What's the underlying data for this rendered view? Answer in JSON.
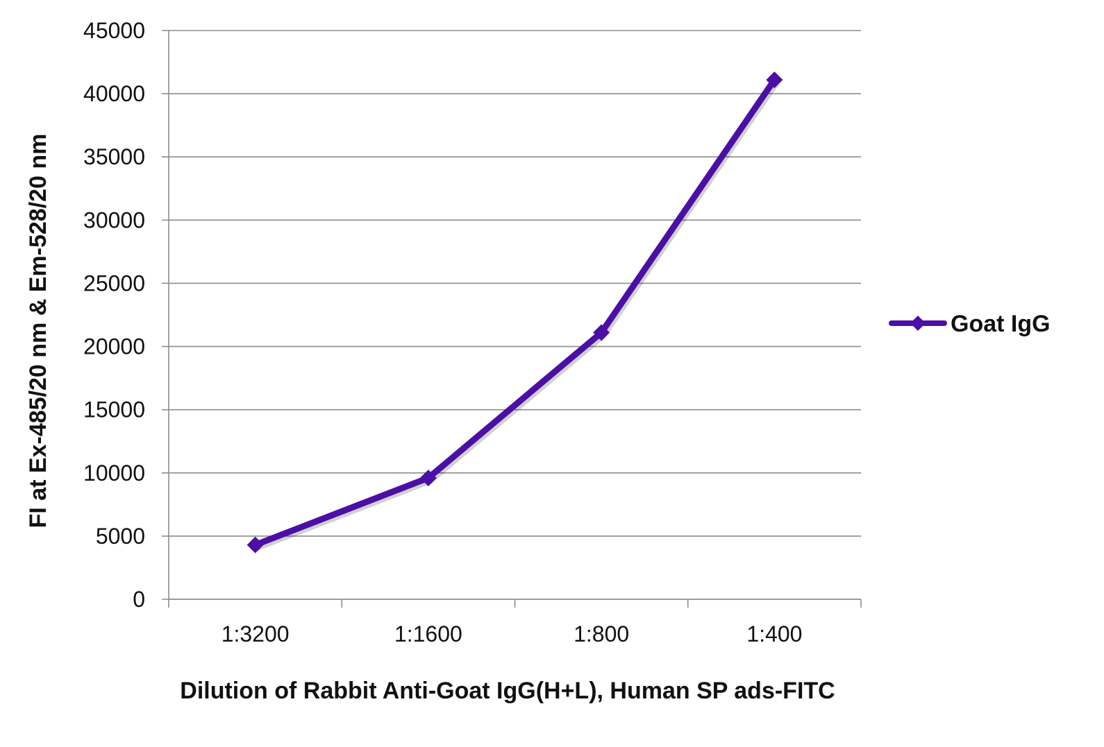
{
  "chart_data": {
    "type": "line",
    "title": "",
    "xlabel": "Dilution of Rabbit Anti-Goat IgG(H+L), Human SP ads-FITC",
    "ylabel": "FI at Ex-485/20 nm & Em-528/20 nm",
    "categories": [
      "1:3200",
      "1:1600",
      "1:800",
      "1:400"
    ],
    "series": [
      {
        "name": "Goat IgG",
        "values": [
          4300,
          9600,
          21100,
          41100
        ],
        "color": "#4b0fa6",
        "marker": "diamond"
      }
    ],
    "ylim": [
      0,
      45000
    ],
    "yticks": [
      0,
      5000,
      10000,
      15000,
      20000,
      25000,
      30000,
      35000,
      40000,
      45000
    ],
    "grid": true,
    "legend_position": "right"
  }
}
